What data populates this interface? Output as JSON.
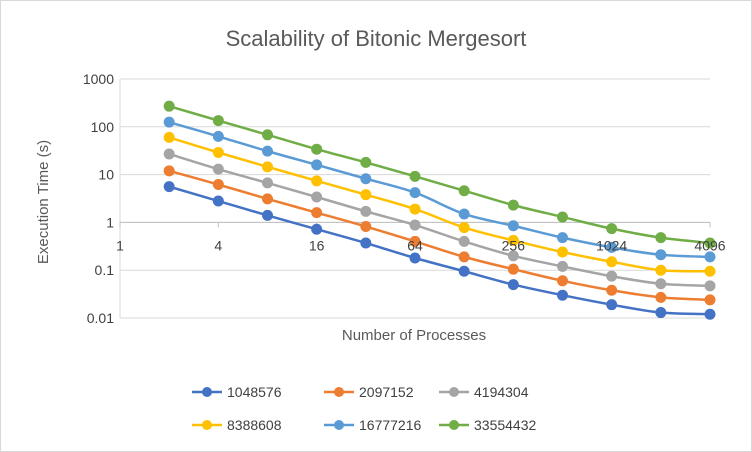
{
  "chart_data": {
    "type": "line",
    "title": "Scalability of Bitonic Mergesort",
    "xlabel": "Number of Processes",
    "ylabel": "Execution Time (s)",
    "x_scale": "log2",
    "y_scale": "log10",
    "xlim": [
      1,
      4096
    ],
    "ylim": [
      0.01,
      1000
    ],
    "x_ticks": [
      1,
      4,
      16,
      64,
      256,
      1024,
      4096
    ],
    "x_tick_labels": [
      "1",
      "4",
      "16",
      "64",
      "256",
      "1024",
      "4096"
    ],
    "y_ticks": [
      0.01,
      0.1,
      1,
      10,
      100,
      1000
    ],
    "y_tick_labels": [
      "0.01",
      "0.1",
      "1",
      "10",
      "100",
      "1000"
    ],
    "grid": "horizontal major",
    "legend_position": "bottom",
    "x": [
      2,
      4,
      8,
      16,
      32,
      64,
      128,
      256,
      512,
      1024,
      2048,
      4096
    ],
    "series": [
      {
        "name": "1048576",
        "color": "#4472C4",
        "values": [
          5.6,
          2.8,
          1.4,
          0.72,
          0.37,
          0.18,
          0.095,
          0.05,
          0.03,
          0.019,
          0.013,
          0.012
        ]
      },
      {
        "name": "2097152",
        "color": "#ED7D31",
        "values": [
          12,
          6.2,
          3.1,
          1.6,
          0.82,
          0.4,
          0.19,
          0.105,
          0.06,
          0.038,
          0.027,
          0.024
        ]
      },
      {
        "name": "4194304",
        "color": "#A5A5A5",
        "values": [
          27,
          13,
          6.7,
          3.4,
          1.7,
          0.88,
          0.4,
          0.2,
          0.12,
          0.075,
          0.052,
          0.047
        ]
      },
      {
        "name": "8388608",
        "color": "#FFC000",
        "values": [
          60,
          29,
          14.5,
          7.4,
          3.8,
          1.9,
          0.78,
          0.42,
          0.24,
          0.15,
          0.1,
          0.095
        ]
      },
      {
        "name": "16777216",
        "color": "#5B9BD5",
        "values": [
          125,
          63,
          31,
          16,
          8.2,
          4.2,
          1.5,
          0.85,
          0.48,
          0.3,
          0.21,
          0.19
        ]
      },
      {
        "name": "33554432",
        "color": "#70AD47",
        "values": [
          270,
          135,
          68,
          34,
          18,
          9.2,
          4.6,
          2.3,
          1.3,
          0.74,
          0.48,
          0.37
        ]
      }
    ]
  }
}
